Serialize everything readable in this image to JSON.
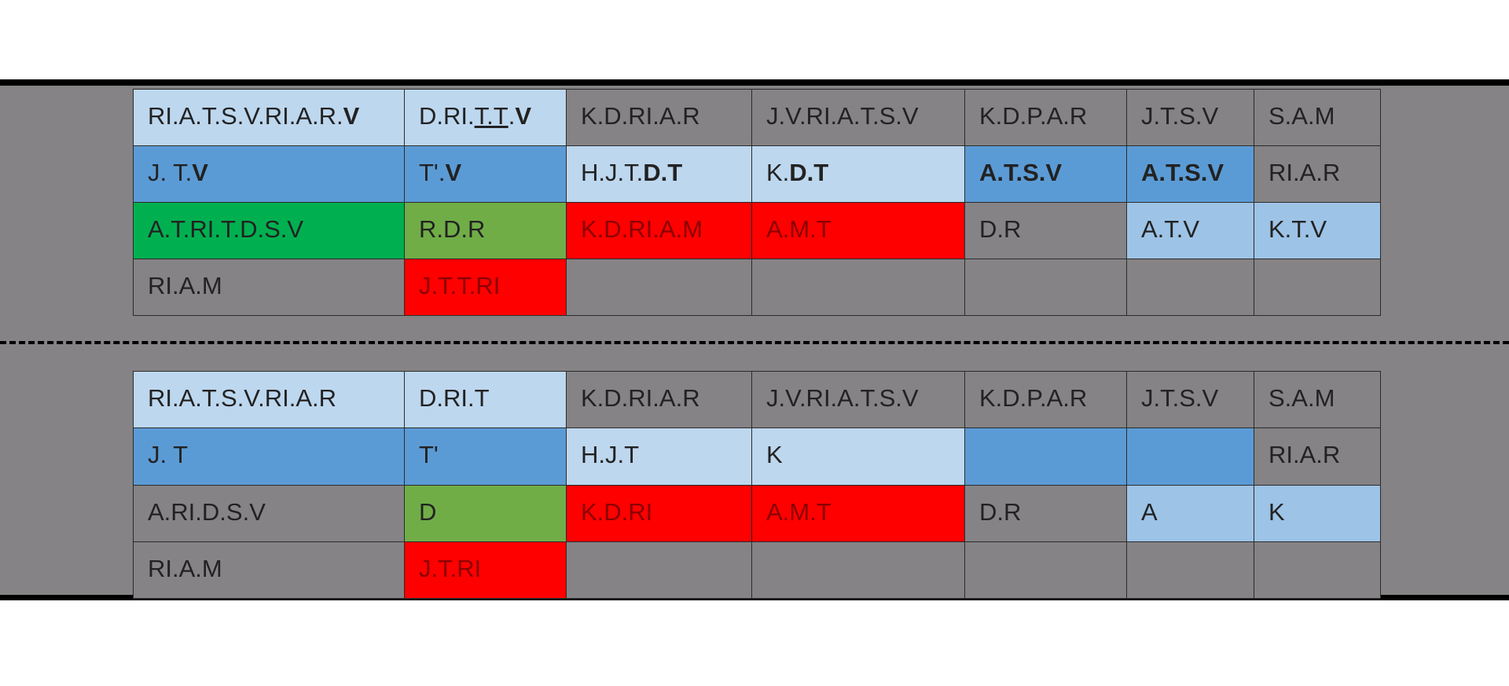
{
  "colors": {
    "background": "#858385",
    "light_blue": "#bdd7ee",
    "medium_blue": "#5b9bd5",
    "pale_blue": "#9dc3e6",
    "green": "#00b050",
    "olive_green": "#70ad47",
    "red": "#ff0000"
  },
  "top_table": {
    "rows": [
      [
        {
          "parts": [
            {
              "t": "RI.A.T.S.V.RI.A.R."
            },
            {
              "t": "V",
              "b": true
            }
          ],
          "color": "light_blue"
        },
        {
          "parts": [
            {
              "t": "D.RI."
            },
            {
              "t": "T.T",
              "u": true
            },
            {
              "t": "."
            },
            {
              "t": "V",
              "b": true
            }
          ],
          "color": "light_blue"
        },
        {
          "parts": [
            {
              "t": "K.D.RI.A.R"
            }
          ],
          "color": "gray"
        },
        {
          "parts": [
            {
              "t": "J.V.RI.A.T.S.V"
            }
          ],
          "color": "gray"
        },
        {
          "parts": [
            {
              "t": "K.D.P.A.R"
            }
          ],
          "color": "gray"
        },
        {
          "parts": [
            {
              "t": "J.T.S.V"
            }
          ],
          "color": "gray"
        },
        {
          "parts": [
            {
              "t": "S.A.M"
            }
          ],
          "color": "gray"
        }
      ],
      [
        {
          "parts": [
            {
              "t": "J. T."
            },
            {
              "t": "V",
              "b": true
            }
          ],
          "color": "medium_blue"
        },
        {
          "parts": [
            {
              "t": "T'. "
            },
            {
              "t": "V",
              "b": true
            }
          ],
          "color": "medium_blue"
        },
        {
          "parts": [
            {
              "t": "H.J.T."
            },
            {
              "t": "D.T",
              "b": true
            }
          ],
          "color": "light_blue"
        },
        {
          "parts": [
            {
              "t": "K."
            },
            {
              "t": "D.T",
              "b": true
            }
          ],
          "color": "light_blue"
        },
        {
          "parts": [
            {
              "t": "A.T.S.V",
              "b": true
            }
          ],
          "color": "medium_blue"
        },
        {
          "parts": [
            {
              "t": "A.T.S.V",
              "b": true
            }
          ],
          "color": "medium_blue"
        },
        {
          "parts": [
            {
              "t": "RI.A.R"
            }
          ],
          "color": "gray"
        }
      ],
      [
        {
          "parts": [
            {
              "t": "A.T.RI.T.D.S.V"
            }
          ],
          "color": "green"
        },
        {
          "parts": [
            {
              "t": "R.D.R"
            }
          ],
          "color": "olive_green"
        },
        {
          "parts": [
            {
              "t": "K.D.RI.A.M"
            }
          ],
          "color": "red"
        },
        {
          "parts": [
            {
              "t": "A.M.T"
            }
          ],
          "color": "red"
        },
        {
          "parts": [
            {
              "t": "D.R"
            }
          ],
          "color": "gray"
        },
        {
          "parts": [
            {
              "t": "A.T.V"
            }
          ],
          "color": "pale_blue"
        },
        {
          "parts": [
            {
              "t": "K.T.V"
            }
          ],
          "color": "pale_blue"
        }
      ],
      [
        {
          "parts": [
            {
              "t": "RI.A.M"
            }
          ],
          "color": "gray"
        },
        {
          "parts": [
            {
              "t": "J.T.T.RI"
            }
          ],
          "color": "red"
        },
        {
          "parts": [],
          "color": "gray"
        },
        {
          "parts": [],
          "color": "gray"
        },
        {
          "parts": [],
          "color": "gray"
        },
        {
          "parts": [],
          "color": "gray"
        },
        {
          "parts": [],
          "color": "gray"
        }
      ]
    ]
  },
  "bottom_table": {
    "rows": [
      [
        {
          "parts": [
            {
              "t": "RI.A.T.S.V.RI.A.R"
            }
          ],
          "color": "light_blue"
        },
        {
          "parts": [
            {
              "t": "D.RI.T"
            }
          ],
          "color": "light_blue"
        },
        {
          "parts": [
            {
              "t": "K.D.RI.A.R"
            }
          ],
          "color": "gray"
        },
        {
          "parts": [
            {
              "t": "J.V.RI.A.T.S.V"
            }
          ],
          "color": "gray"
        },
        {
          "parts": [
            {
              "t": "K.D.P.A.R"
            }
          ],
          "color": "gray"
        },
        {
          "parts": [
            {
              "t": "J.T.S.V"
            }
          ],
          "color": "gray"
        },
        {
          "parts": [
            {
              "t": "S.A.M"
            }
          ],
          "color": "gray"
        }
      ],
      [
        {
          "parts": [
            {
              "t": "J. T"
            }
          ],
          "color": "medium_blue"
        },
        {
          "parts": [
            {
              "t": "T'"
            }
          ],
          "color": "medium_blue"
        },
        {
          "parts": [
            {
              "t": "H.J.T"
            }
          ],
          "color": "light_blue"
        },
        {
          "parts": [
            {
              "t": "K"
            }
          ],
          "color": "light_blue"
        },
        {
          "parts": [],
          "color": "medium_blue"
        },
        {
          "parts": [],
          "color": "medium_blue"
        },
        {
          "parts": [
            {
              "t": "RI.A.R"
            }
          ],
          "color": "gray"
        }
      ],
      [
        {
          "parts": [
            {
              "t": "A.RI.D.S.V"
            }
          ],
          "color": "gray"
        },
        {
          "parts": [
            {
              "t": "D"
            }
          ],
          "color": "olive_green"
        },
        {
          "parts": [
            {
              "t": "K.D.RI"
            }
          ],
          "color": "red"
        },
        {
          "parts": [
            {
              "t": "A.M.T"
            }
          ],
          "color": "red"
        },
        {
          "parts": [
            {
              "t": "D.R"
            }
          ],
          "color": "gray"
        },
        {
          "parts": [
            {
              "t": "A"
            }
          ],
          "color": "pale_blue"
        },
        {
          "parts": [
            {
              "t": "K"
            }
          ],
          "color": "pale_blue"
        }
      ],
      [
        {
          "parts": [
            {
              "t": "RI.A.M"
            }
          ],
          "color": "gray"
        },
        {
          "parts": [
            {
              "t": "J.T.RI"
            }
          ],
          "color": "red"
        },
        {
          "parts": [],
          "color": "gray"
        },
        {
          "parts": [],
          "color": "gray"
        },
        {
          "parts": [],
          "color": "gray"
        },
        {
          "parts": [],
          "color": "gray"
        },
        {
          "parts": [],
          "color": "gray"
        }
      ]
    ]
  }
}
